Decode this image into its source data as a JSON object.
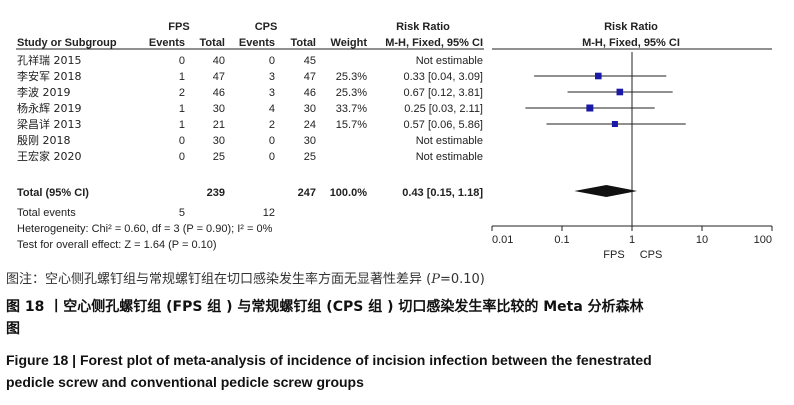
{
  "chart_data": {
    "type": "forest",
    "header": {
      "group1": "FPS",
      "group2": "CPS",
      "risk_ratio": "Risk Ratio",
      "risk_ratio_plot": "Risk Ratio",
      "study": "Study or Subgroup",
      "events1": "Events",
      "total1": "Total",
      "events2": "Events",
      "total2": "Total",
      "weight": "Weight",
      "method": "M-H, Fixed, 95% CI",
      "method_plot": "M-H, Fixed, 95% CI"
    },
    "studies": [
      {
        "name": "孔祥瑞 2015",
        "e1": "0",
        "t1": "40",
        "e2": "0",
        "t2": "45",
        "weight": "",
        "ci_text": "Not estimable",
        "rr": null,
        "lo": null,
        "hi": null
      },
      {
        "name": "李安军 2018",
        "e1": "1",
        "t1": "47",
        "e2": "3",
        "t2": "47",
        "weight": "25.3%",
        "ci_text": "0.33 [0.04, 3.09]",
        "rr": 0.33,
        "lo": 0.04,
        "hi": 3.09
      },
      {
        "name": "李波 2019",
        "e1": "2",
        "t1": "46",
        "e2": "3",
        "t2": "46",
        "weight": "25.3%",
        "ci_text": "0.67 [0.12, 3.81]",
        "rr": 0.67,
        "lo": 0.12,
        "hi": 3.81
      },
      {
        "name": "杨永辉 2019",
        "e1": "1",
        "t1": "30",
        "e2": "4",
        "t2": "30",
        "weight": "33.7%",
        "ci_text": "0.25 [0.03, 2.11]",
        "rr": 0.25,
        "lo": 0.03,
        "hi": 2.11
      },
      {
        "name": "梁昌详 2013",
        "e1": "1",
        "t1": "21",
        "e2": "2",
        "t2": "24",
        "weight": "15.7%",
        "ci_text": "0.57 [0.06, 5.86]",
        "rr": 0.57,
        "lo": 0.06,
        "hi": 5.86
      },
      {
        "name": "殷刚 2018",
        "e1": "0",
        "t1": "30",
        "e2": "0",
        "t2": "30",
        "weight": "",
        "ci_text": "Not estimable",
        "rr": null,
        "lo": null,
        "hi": null
      },
      {
        "name": "王宏家 2020",
        "e1": "0",
        "t1": "25",
        "e2": "0",
        "t2": "25",
        "weight": "",
        "ci_text": "Not estimable",
        "rr": null,
        "lo": null,
        "hi": null
      }
    ],
    "total": {
      "name": "Total (95% CI)",
      "t1": "239",
      "t2": "247",
      "weight": "100.0%",
      "ci_text": "0.43 [0.15, 1.18]",
      "rr": 0.43,
      "lo": 0.15,
      "hi": 1.18
    },
    "total_events": {
      "label": "Total events",
      "e1": "5",
      "e2": "12"
    },
    "heterogeneity": "Heterogeneity: Chi² = 0.60, df = 3 (P = 0.90); I² = 0%",
    "overall_effect": "Test for overall effect: Z = 1.64 (P = 0.10)",
    "x_scale": "log",
    "xlim": [
      0.01,
      100
    ],
    "ticks": [
      "0.01",
      "0.1",
      "1",
      "10",
      "100"
    ],
    "tick_values": [
      0.01,
      0.1,
      1,
      10,
      100
    ],
    "favours_left": "FPS",
    "favours_right": "CPS",
    "marker_color": "#1a1aa6"
  },
  "caption": {
    "note_prefix": "图注：空心侧孔螺钉组与常规螺钉组在切口感染发生率方面无显著性差异 (",
    "note_p": "P",
    "note_suffix": "=0.10)",
    "title_cn_1": "图 18 丨空心侧孔螺钉组 (FPS 组 ) 与常规螺钉组 (CPS 组 ) 切口感染发生率比较的 Meta 分析森林",
    "title_cn_2": "图",
    "title_en_1": "Figure 18  |  Forest plot of meta-analysis of incidence of incision infection between the fenestrated",
    "title_en_2": "pedicle screw and conventional pedicle screw groups"
  }
}
